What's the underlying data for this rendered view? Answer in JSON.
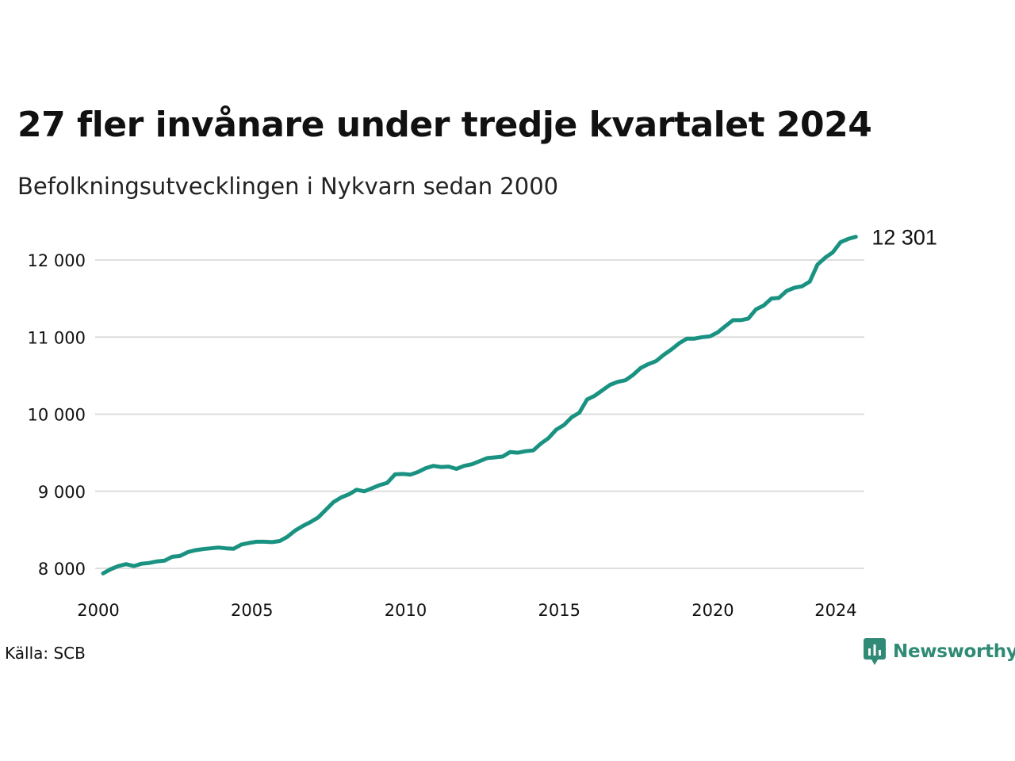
{
  "title": "27 fler invånare under tredje kvartalet 2024",
  "subtitle": "Befolkningsutvecklingen i Nykvarn sedan 2000",
  "source": "Källa: SCB",
  "brand": {
    "name": "Newsworthy",
    "icon": "newsworthy-logo-icon",
    "color": "#2f8a76"
  },
  "chart_data": {
    "type": "line",
    "title": "27 fler invånare under tredje kvartalet 2024",
    "subtitle": "Befolkningsutvecklingen i Nykvarn sedan 2000",
    "xlabel": "",
    "ylabel": "",
    "xlim": [
      2000,
      2024.75
    ],
    "ylim": [
      7950,
      12350
    ],
    "grid": true,
    "line_color": "#1a9282",
    "x_ticks": [
      2000,
      2005,
      2010,
      2015,
      2020,
      2024
    ],
    "x_tick_labels": [
      "2000",
      "2005",
      "2010",
      "2015",
      "2020",
      "2024"
    ],
    "y_ticks": [
      8000,
      9000,
      10000,
      11000,
      12000
    ],
    "y_tick_labels": [
      "8 000",
      "9 000",
      "10 000",
      "11 000",
      "12 000"
    ],
    "end_label": "12 301",
    "series": [
      {
        "x_start": 2000.0,
        "x_step": 0.25,
        "values": [
          7935,
          7990,
          8030,
          8055,
          8030,
          8060,
          8070,
          8090,
          8100,
          8150,
          8160,
          8210,
          8235,
          8250,
          8260,
          8270,
          8260,
          8255,
          8310,
          8330,
          8345,
          8345,
          8340,
          8355,
          8410,
          8490,
          8550,
          8600,
          8660,
          8760,
          8860,
          8920,
          8960,
          9020,
          9000,
          9040,
          9080,
          9110,
          9220,
          9225,
          9215,
          9250,
          9300,
          9330,
          9315,
          9320,
          9290,
          9330,
          9350,
          9390,
          9430,
          9440,
          9450,
          9510,
          9500,
          9520,
          9530,
          9620,
          9690,
          9800,
          9860,
          9960,
          10020,
          10190,
          10240,
          10310,
          10380,
          10420,
          10440,
          10510,
          10600,
          10650,
          10690,
          10770,
          10840,
          10920,
          10980,
          10980,
          11000,
          11010,
          11060,
          11140,
          11220,
          11220,
          11240,
          11360,
          11410,
          11500,
          11510,
          11600,
          11640,
          11660,
          11720,
          11940,
          12030,
          12100,
          12230,
          12274,
          12301
        ]
      }
    ]
  }
}
